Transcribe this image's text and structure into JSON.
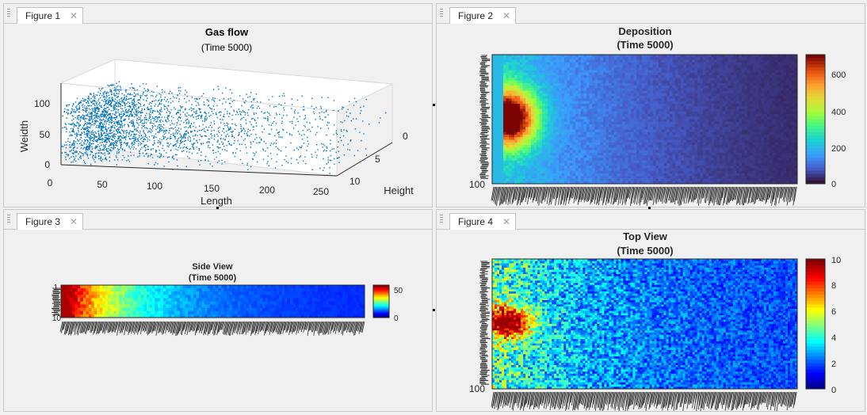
{
  "figures": [
    {
      "tab_label": "Figure 1",
      "title": "Gas flow",
      "subtitle": "(Time 5000)",
      "xlabel": "Length",
      "ylabel": "Height",
      "zlabel": "Weidth",
      "x_ticks": [
        "0",
        "50",
        "100",
        "150",
        "200",
        "250"
      ],
      "y_ticks": [
        "0",
        "5",
        "10"
      ],
      "z_ticks": [
        "0",
        "50",
        "100"
      ],
      "chart_data": {
        "type": "scatter",
        "title": "Gas flow",
        "subtitle": "(Time 5000)",
        "xlabel": "Length",
        "ylabel": "Height",
        "zlabel": "Weidth",
        "xlim": [
          0,
          260
        ],
        "ylim": [
          0,
          12
        ],
        "zlim": [
          0,
          100
        ],
        "grid": true,
        "marker_color": "#0072bd"
      }
    },
    {
      "tab_label": "Figure 2",
      "title": "Deposition",
      "subtitle": "(Time 5000)",
      "y_edge_label": "100",
      "colorbar_ticks": [
        "600",
        "400",
        "200",
        "0"
      ],
      "chart_data": {
        "type": "heatmap",
        "title": "Deposition",
        "subtitle": "(Time 5000)",
        "colormap": "turbo",
        "clim": [
          0,
          700
        ],
        "colorbar_ticks": [
          0,
          200,
          400,
          600
        ],
        "peak": {
          "x_frac": 0.05,
          "y_frac": 0.48,
          "value": 700
        }
      }
    },
    {
      "tab_label": "Figure 3",
      "title": "Side View",
      "subtitle": "(Time 5000)",
      "y_edge_top": "1",
      "y_edge_bottom": "10",
      "colorbar_ticks": [
        "50",
        "0"
      ],
      "chart_data": {
        "type": "heatmap",
        "title": "Side View",
        "subtitle": "(Time 5000)",
        "colormap": "jet",
        "clim": [
          0,
          60
        ],
        "colorbar_ticks": [
          0,
          50
        ],
        "rows": 10
      }
    },
    {
      "tab_label": "Figure 4",
      "title": "Top View",
      "subtitle": "(Time 5000)",
      "y_edge_label": "100",
      "colorbar_ticks": [
        "10",
        "8",
        "6",
        "4",
        "2",
        "0"
      ],
      "chart_data": {
        "type": "heatmap",
        "title": "Top View",
        "subtitle": "(Time 5000)",
        "colormap": "jet",
        "clim": [
          0,
          10
        ],
        "colorbar_ticks": [
          0,
          2,
          4,
          6,
          8,
          10
        ],
        "peak": {
          "x_frac": 0.05,
          "y_frac": 0.48,
          "value": 10
        }
      }
    }
  ]
}
